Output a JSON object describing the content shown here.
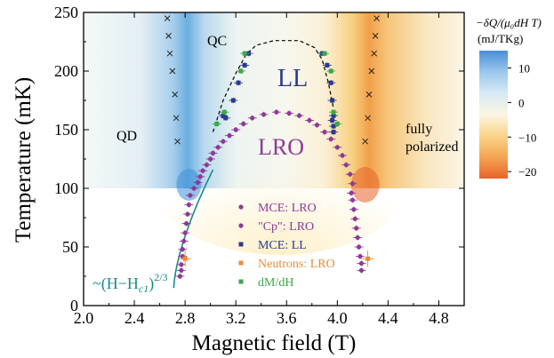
{
  "chart_data": {
    "type": "scatter",
    "xlabel": "Magnetic field (T)",
    "ylabel": "Temperature (mK)",
    "xlim": [
      2.0,
      5.0
    ],
    "ylim": [
      0,
      250
    ],
    "x_ticks": [
      "2.0",
      "2.4",
      "2.8",
      "3.2",
      "3.6",
      "4.0",
      "4.4",
      "4.8"
    ],
    "x_tick_values": [
      2.0,
      2.4,
      2.8,
      3.2,
      3.6,
      4.0,
      4.4,
      4.8
    ],
    "y_ticks": [
      "0",
      "50",
      "100",
      "150",
      "200",
      "250"
    ],
    "y_tick_values": [
      0,
      50,
      100,
      150,
      200,
      250
    ],
    "heatmap_lower_bound_mK": 100,
    "region_labels": {
      "qc": "QC",
      "ll": "LL",
      "qd": "QD",
      "lro": "LRO",
      "fully_polarized_line1": "fully",
      "fully_polarized_line2": "polarized"
    },
    "fit_label": {
      "prefix": "~(H−H",
      "subscript": "c1",
      "close": ")",
      "exponent": "2/3"
    },
    "fit_curve": {
      "Hc1": 2.71,
      "amplitude": 220,
      "exponent": 0.667,
      "x_range": [
        2.71,
        3.02
      ],
      "color": "#1a8a8a"
    },
    "dashed_boundary": {
      "x": [
        3.02,
        3.1,
        3.2,
        3.28,
        3.36,
        3.5,
        3.7,
        3.82,
        3.88,
        3.93,
        3.97
      ],
      "y": [
        148,
        175,
        198,
        214,
        222,
        226,
        226,
        220,
        210,
        190,
        168
      ]
    },
    "colorbar": {
      "title_line1": "−δQ/(μ₀dH T)",
      "title_line2": "(mJ/TKg)",
      "tick_labels": [
        "10",
        "0",
        "−10",
        "−20"
      ],
      "tick_values": [
        10,
        0,
        -10,
        -20
      ],
      "range": [
        -22,
        15
      ],
      "stops": [
        "#4a8fd8",
        "#9cc8ec",
        "#d7e9f4",
        "#fbf5e3",
        "#f9d48a",
        "#f3a552",
        "#e8632a"
      ]
    },
    "series": [
      {
        "name": "MCE: LRO",
        "marker": "circle",
        "color": "#8e3a96",
        "points": [
          [
            2.87,
            100
          ],
          [
            2.9,
            105
          ],
          [
            2.92,
            110
          ],
          [
            2.94,
            115
          ],
          [
            2.97,
            120
          ],
          [
            3.0,
            125
          ],
          [
            3.02,
            130
          ],
          [
            3.06,
            135
          ],
          [
            3.1,
            140
          ],
          [
            3.15,
            145
          ],
          [
            3.2,
            150
          ],
          [
            3.26,
            155
          ],
          [
            3.33,
            160
          ],
          [
            3.42,
            163
          ],
          [
            3.52,
            165
          ],
          [
            3.62,
            164
          ],
          [
            3.7,
            162
          ],
          [
            3.78,
            158
          ],
          [
            3.84,
            154
          ],
          [
            3.9,
            148
          ],
          [
            3.95,
            142
          ],
          [
            4.0,
            135
          ],
          [
            4.04,
            128
          ],
          [
            4.07,
            120
          ],
          [
            4.1,
            112
          ],
          [
            4.12,
            104
          ]
        ]
      },
      {
        "name": "\"Cp\": LRO",
        "marker": "circle",
        "color": "#8e3a96",
        "points": [
          [
            2.76,
            25
          ],
          [
            2.77,
            30
          ],
          [
            2.77,
            35
          ],
          [
            2.78,
            42
          ],
          [
            2.78,
            48
          ],
          [
            2.79,
            55
          ],
          [
            2.8,
            62
          ],
          [
            2.81,
            70
          ],
          [
            2.82,
            78
          ],
          [
            2.83,
            86
          ],
          [
            2.84,
            94
          ],
          [
            4.19,
            30
          ],
          [
            4.19,
            36
          ],
          [
            4.18,
            42
          ],
          [
            4.17,
            50
          ],
          [
            4.16,
            58
          ],
          [
            4.15,
            66
          ],
          [
            4.14,
            74
          ],
          [
            4.13,
            82
          ],
          [
            4.12,
            90
          ],
          [
            4.11,
            96
          ]
        ]
      },
      {
        "name": "MCE: LL",
        "marker": "square",
        "color": "#2b3a8f",
        "points": [
          [
            3.1,
            162
          ],
          [
            3.12,
            160
          ],
          [
            3.18,
            175
          ],
          [
            3.22,
            190
          ],
          [
            3.27,
            205
          ],
          [
            3.3,
            215
          ],
          [
            3.88,
            215
          ],
          [
            3.92,
            205
          ],
          [
            3.95,
            190
          ],
          [
            3.96,
            175
          ],
          [
            3.97,
            162
          ],
          [
            3.96,
            158
          ],
          [
            3.97,
            153
          ],
          [
            3.97,
            148
          ]
        ]
      },
      {
        "name": "Neutrons: LRO",
        "marker": "square",
        "color": "#f08a2d",
        "points": [
          [
            2.8,
            40
          ],
          [
            4.24,
            40
          ]
        ]
      },
      {
        "name": "dM/dH",
        "marker": "square",
        "color": "#3aa84a",
        "points": [
          [
            3.05,
            155
          ],
          [
            3.11,
            165
          ],
          [
            3.24,
            200
          ],
          [
            3.27,
            215
          ],
          [
            3.9,
            215
          ],
          [
            3.95,
            200
          ],
          [
            3.97,
            165
          ],
          [
            4.0,
            155
          ]
        ]
      }
    ],
    "cross_markers": {
      "points": [
        [
          2.66,
          245
        ],
        [
          2.67,
          230
        ],
        [
          2.68,
          215
        ],
        [
          2.7,
          200
        ],
        [
          2.72,
          180
        ],
        [
          2.73,
          160
        ],
        [
          2.74,
          140
        ],
        [
          4.31,
          245
        ],
        [
          4.3,
          230
        ],
        [
          4.29,
          215
        ],
        [
          4.27,
          200
        ],
        [
          4.25,
          180
        ],
        [
          4.24,
          160
        ],
        [
          4.22,
          140
        ]
      ]
    },
    "legend": {
      "placement": "lower-center",
      "entries": [
        {
          "label": "MCE: LRO",
          "color": "#8e3a96",
          "marker": "circle"
        },
        {
          "label": "\"Cp\":  LRO",
          "color": "#8e3a96",
          "marker": "circle"
        },
        {
          "label": "MCE: LL",
          "color": "#2b3a8f",
          "marker": "square"
        },
        {
          "label": "Neutrons: LRO",
          "color": "#f08a2d",
          "marker": "square"
        },
        {
          "label": "dM/dH",
          "color": "#3aa84a",
          "marker": "square"
        }
      ]
    }
  }
}
